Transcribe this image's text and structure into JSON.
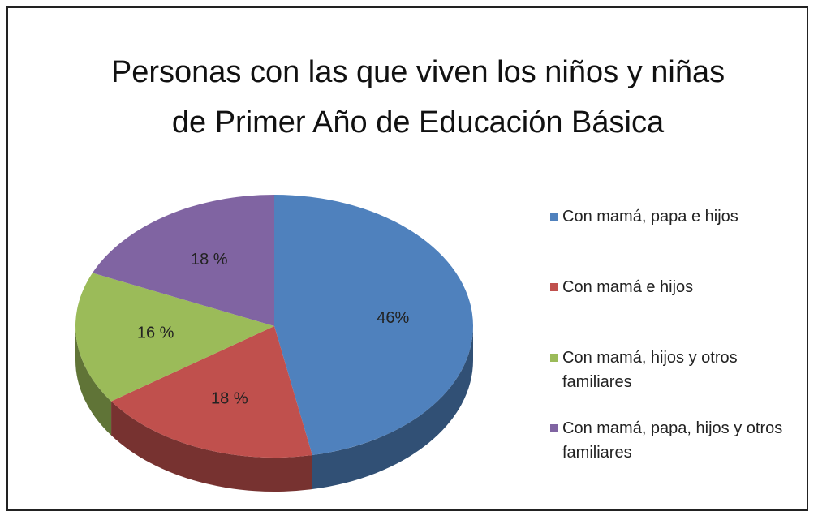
{
  "chart_data": {
    "type": "pie",
    "title": "Personas con las que viven los niños y niñas de Primer Año de Educación Básica",
    "series": [
      {
        "name": "Con mamá, papa e hijos",
        "color": "#4f81bd",
        "values": [
          46
        ],
        "value_labels": [
          "46%"
        ]
      },
      {
        "name": "Con mamá e hijos",
        "color": "#c0504d",
        "values": [
          18
        ],
        "value_labels": [
          "18 %"
        ]
      },
      {
        "name": "Con mamá, hijos y otros familiares",
        "color": "#9bbb59",
        "values": [
          16
        ],
        "value_labels": [
          "16 %"
        ]
      },
      {
        "name": "Con mamá, papa, hijos y otros familiares",
        "color": "#8064a2",
        "values": [
          18
        ],
        "value_labels": [
          "18 %"
        ]
      }
    ],
    "legend": "right"
  }
}
